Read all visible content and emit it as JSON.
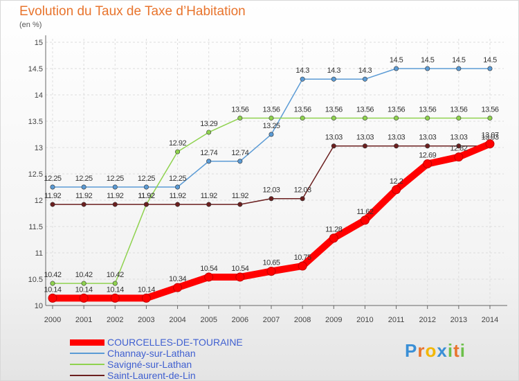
{
  "header": {
    "title": "Evolution du Taux de Taxe d’Habitation",
    "unit": "(en %)"
  },
  "chart_data": {
    "type": "line",
    "x": [
      2000,
      2001,
      2002,
      2003,
      2004,
      2005,
      2006,
      2007,
      2008,
      2009,
      2010,
      2011,
      2012,
      2013,
      2014
    ],
    "ylim": [
      10,
      15
    ],
    "yticks": [
      10,
      10.5,
      11,
      11.5,
      12,
      12.5,
      13,
      13.5,
      14,
      14.5,
      15
    ],
    "grid": true,
    "legend_position": "bottom-left",
    "series": [
      {
        "name": "COURCELLES-DE-TOURAINE",
        "color": "#ff0000",
        "emphasis": true,
        "values": [
          10.14,
          10.14,
          10.14,
          10.14,
          10.34,
          10.54,
          10.54,
          10.65,
          10.75,
          11.28,
          11.62,
          12.2,
          12.69,
          12.82,
          13.07
        ]
      },
      {
        "name": "Channay-sur-Lathan",
        "color": "#5b9bd5",
        "values": [
          12.25,
          12.25,
          12.25,
          12.25,
          12.25,
          12.74,
          12.74,
          13.25,
          14.3,
          14.3,
          14.3,
          14.5,
          14.5,
          14.5,
          14.5
        ]
      },
      {
        "name": "Savigné-sur-Lathan",
        "color": "#8fd24f",
        "values": [
          10.42,
          10.42,
          10.42,
          11.92,
          12.92,
          13.29,
          13.56,
          13.56,
          13.56,
          13.56,
          13.56,
          13.56,
          13.56,
          13.56,
          13.56
        ]
      },
      {
        "name": "Saint-Laurent-de-Lin",
        "color": "#6b1f1f",
        "values": [
          11.92,
          11.92,
          11.92,
          11.92,
          11.92,
          11.92,
          11.92,
          12.03,
          12.03,
          13.03,
          13.03,
          13.03,
          13.03,
          13.03,
          13.03
        ]
      }
    ]
  },
  "logo": {
    "letters": [
      "P",
      "r",
      "o",
      "x",
      "i",
      "t",
      "i"
    ],
    "colors": [
      "#3a8fd6",
      "#e8742d",
      "#f2b705",
      "#3a8fd6",
      "#6cc04a",
      "#e8742d",
      "#6cc04a"
    ]
  }
}
